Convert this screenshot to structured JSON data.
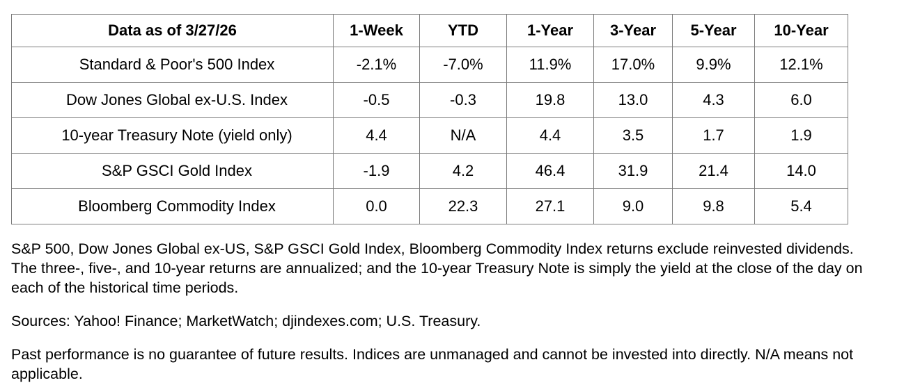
{
  "table": {
    "header": [
      "Data as of 3/27/26",
      "1-Week",
      "YTD",
      "1-Year",
      "3-Year",
      "5-Year",
      "10-Year"
    ],
    "rows": [
      {
        "label": "Standard & Poor's 500 Index",
        "values": [
          "-2.1%",
          "-7.0%",
          "11.9%",
          "17.0%",
          "9.9%",
          "12.1%"
        ]
      },
      {
        "label": "Dow Jones Global ex-U.S. Index",
        "values": [
          "-0.5",
          "-0.3",
          "19.8",
          "13.0",
          "4.3",
          "6.0"
        ]
      },
      {
        "label": "10-year Treasury Note (yield only)",
        "values": [
          "4.4",
          "N/A",
          "4.4",
          "3.5",
          "1.7",
          "1.9"
        ]
      },
      {
        "label": "S&P GSCI Gold Index",
        "values": [
          "-1.9",
          "4.2",
          "46.4",
          "31.9",
          "21.4",
          "14.0"
        ]
      },
      {
        "label": "Bloomberg Commodity Index",
        "values": [
          "0.0",
          "22.3",
          "27.1",
          "9.0",
          "9.8",
          "5.4"
        ]
      }
    ]
  },
  "notes": [
    "S&P 500, Dow Jones Global ex-US, S&P GSCI Gold Index, Bloomberg Commodity Index returns exclude reinvested dividends. The three-, five-, and 10-year returns are annualized; and the 10-year Treasury Note is simply the yield at the close of the day on each of the historical time periods.",
    "Sources: Yahoo! Finance; MarketWatch; djindexes.com; U.S. Treasury.",
    "Past performance is no guarantee of future results. Indices are unmanaged and cannot be invested into directly. N/A means not applicable."
  ],
  "colors": {
    "border": "#7b7b7b",
    "text": "#000000",
    "background": "#ffffff"
  }
}
